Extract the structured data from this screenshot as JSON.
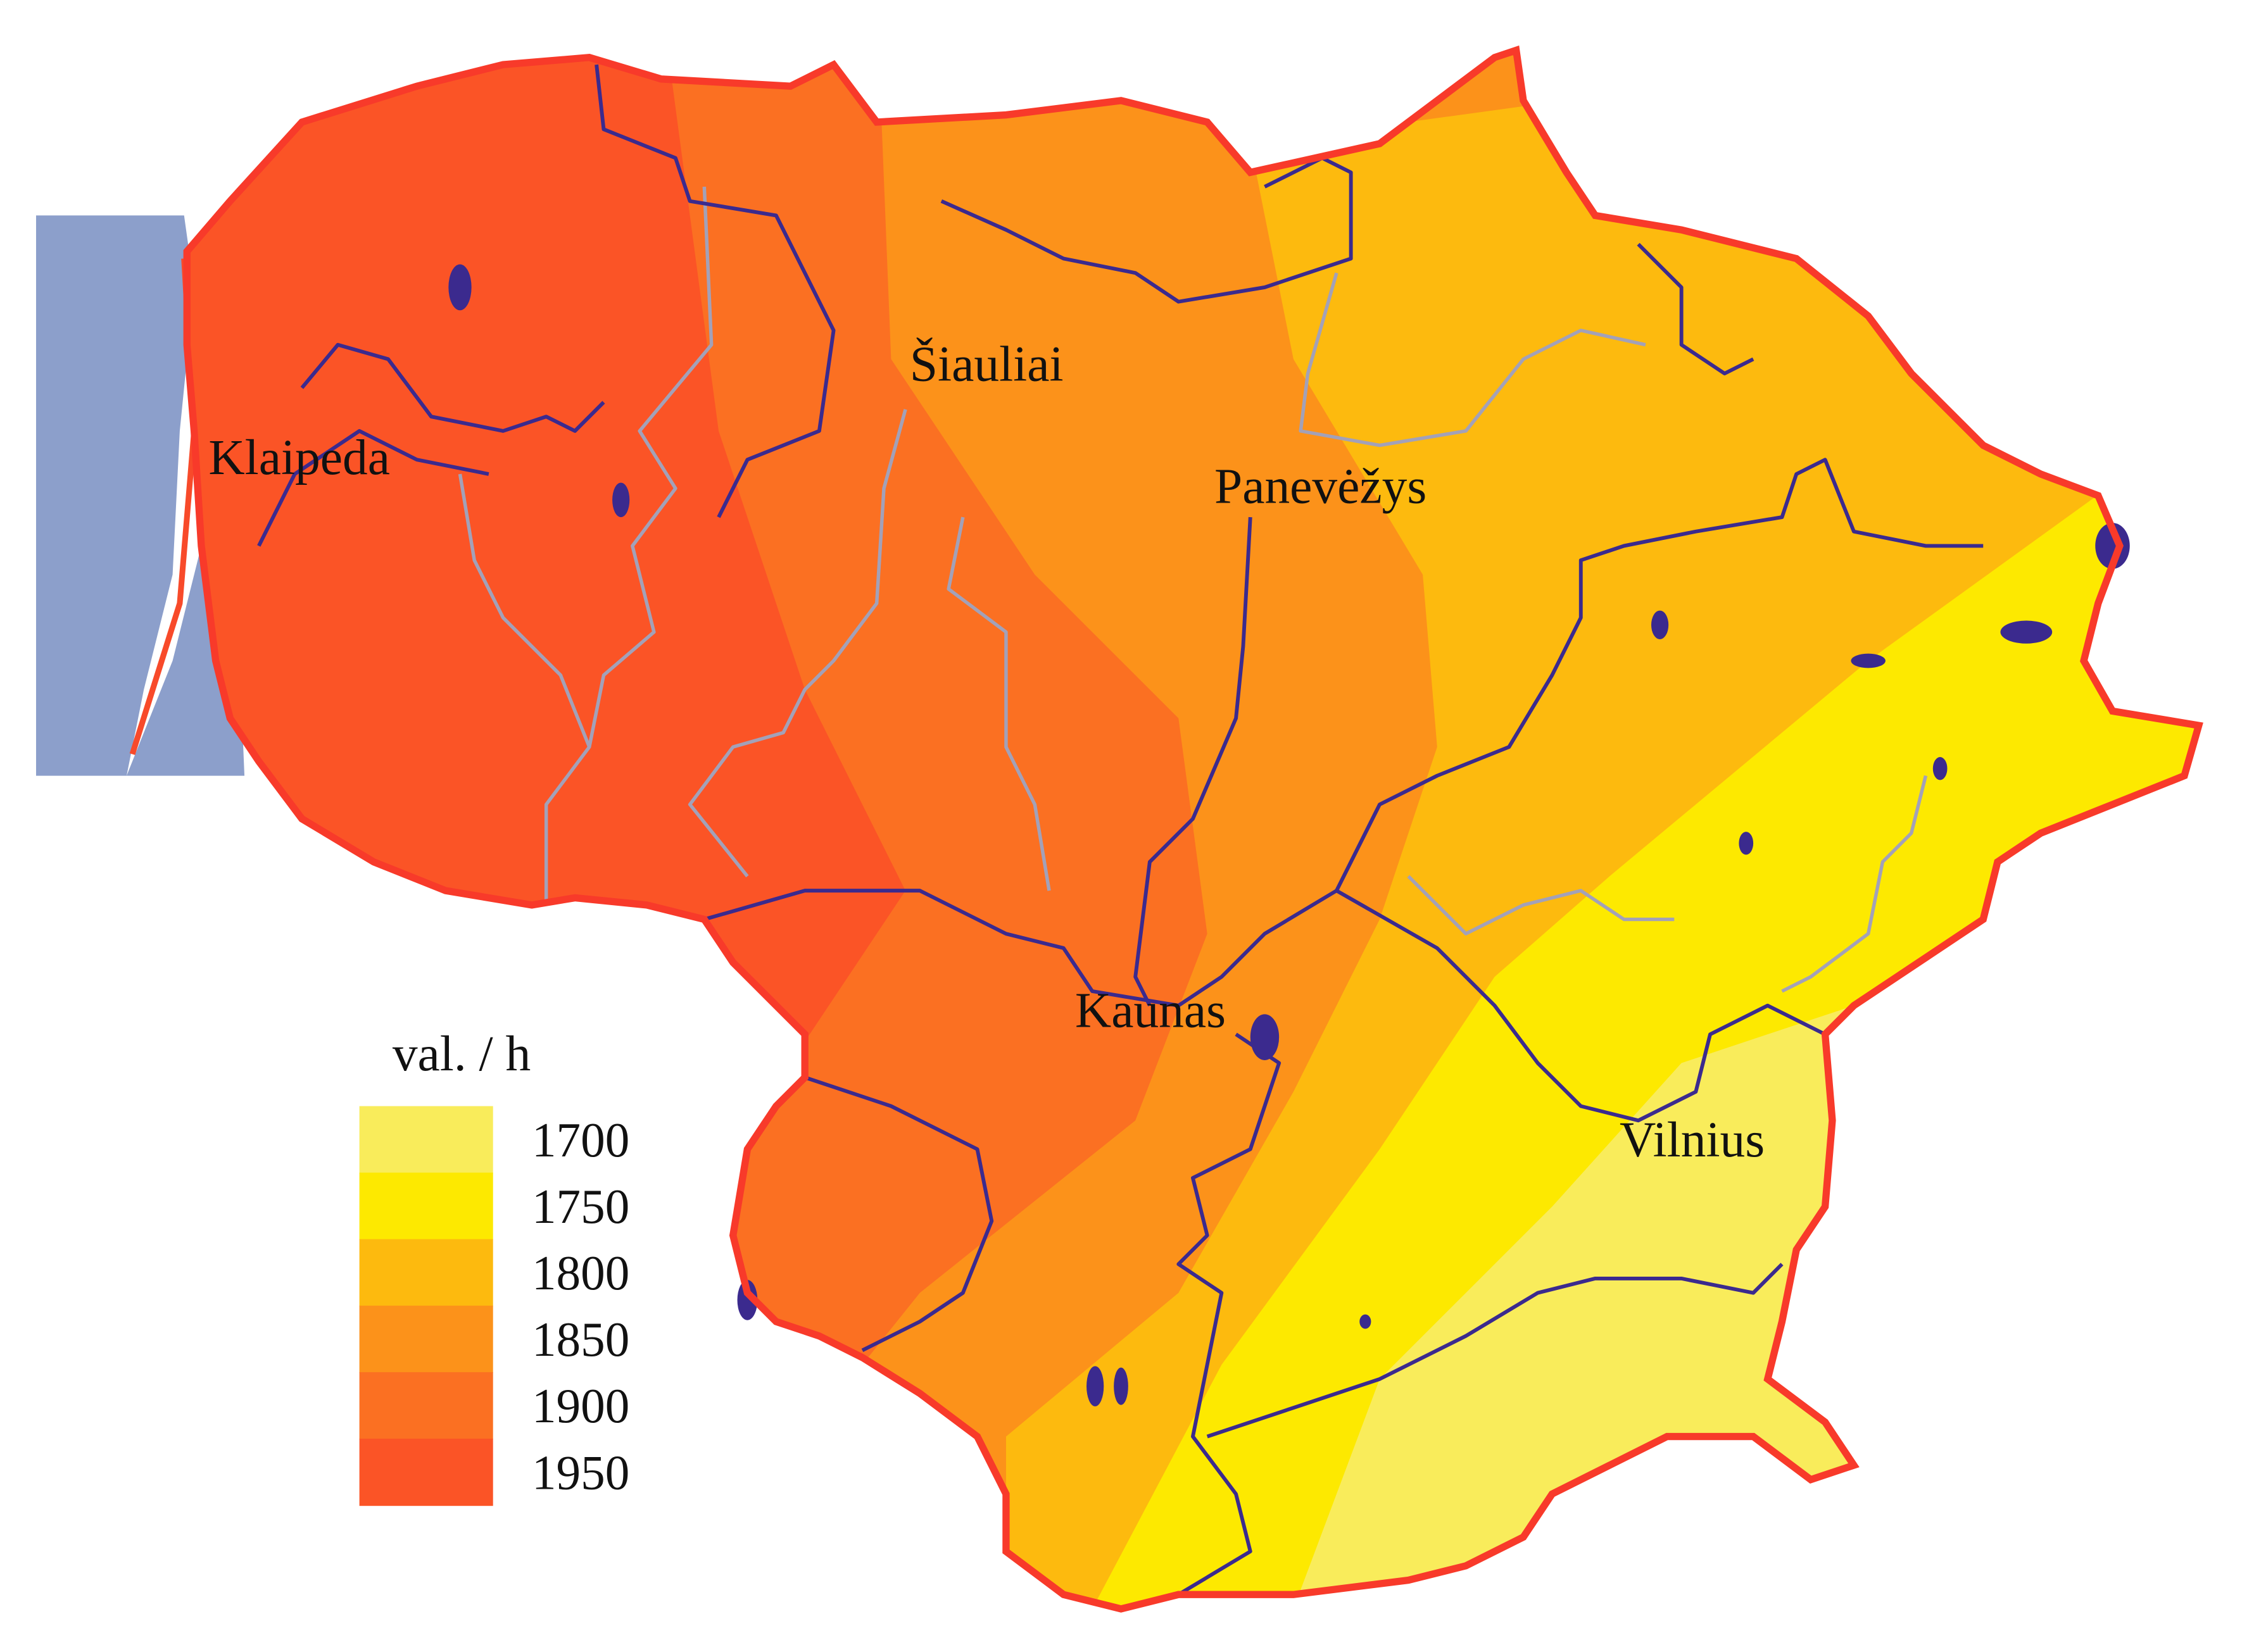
{
  "map": {
    "cities": [
      "Klaipeda",
      "Šiauliai",
      "Panevėžys",
      "Kaunas",
      "Vilnius"
    ],
    "legend": {
      "title": "val. / h",
      "items": [
        {
          "label": 1700,
          "color": "#f9ec5b"
        },
        {
          "label": 1750,
          "color": "#fde900"
        },
        {
          "label": 1800,
          "color": "#fdba0e"
        },
        {
          "label": 1850,
          "color": "#fc921a"
        },
        {
          "label": 1900,
          "color": "#fb7022"
        },
        {
          "label": 1950,
          "color": "#fb5426"
        }
      ]
    }
  }
}
